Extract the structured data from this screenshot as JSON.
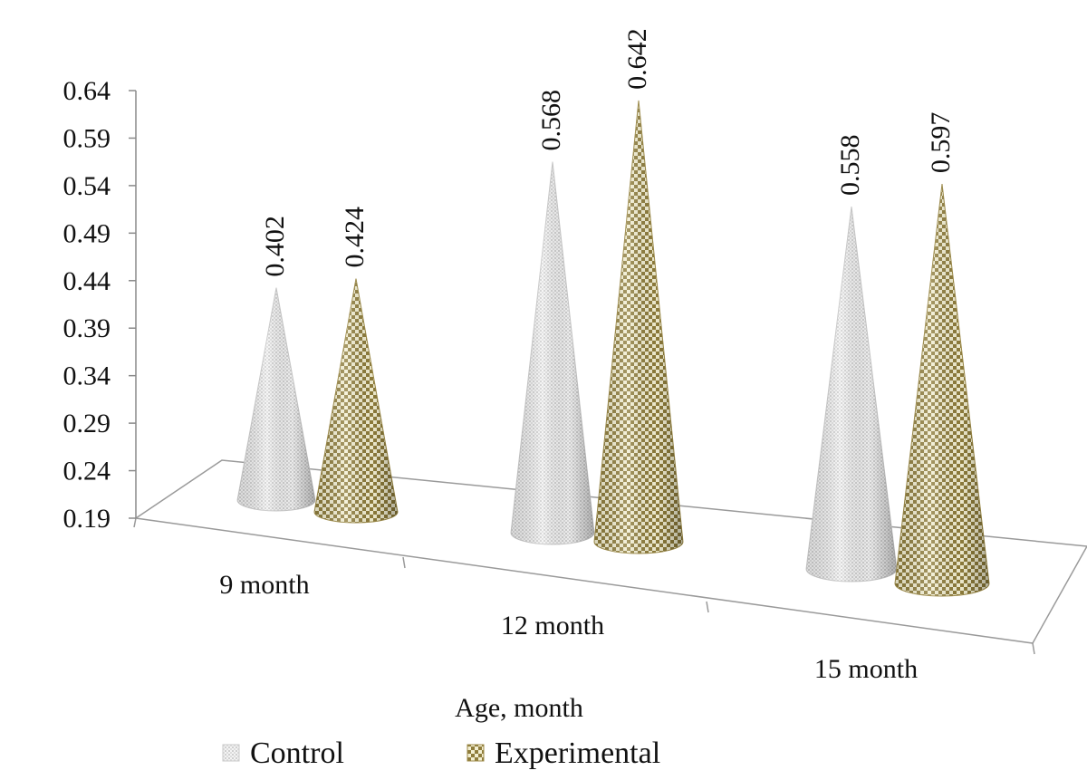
{
  "chart_data": {
    "type": "bar",
    "shape": "cone-3d",
    "title": "",
    "xlabel": "Age, month",
    "ylabel": "",
    "ylim": [
      0.19,
      0.64
    ],
    "y_ticks": [
      "0.19",
      "0.24",
      "0.29",
      "0.34",
      "0.39",
      "0.44",
      "0.49",
      "0.54",
      "0.59",
      "0.64"
    ],
    "categories": [
      "9 month",
      "12 month",
      "15 month"
    ],
    "series": [
      {
        "name": "Control",
        "values": [
          0.402,
          0.568,
          0.558
        ],
        "labels": [
          "0.402",
          "0.568",
          "0.558"
        ],
        "color": "#e6e6e6"
      },
      {
        "name": "Experimental",
        "values": [
          0.424,
          0.642,
          0.597
        ],
        "labels": [
          "0.424",
          "0.642",
          "0.597"
        ],
        "color": "#a8965a"
      }
    ],
    "legend_position": "bottom",
    "grid": false
  }
}
